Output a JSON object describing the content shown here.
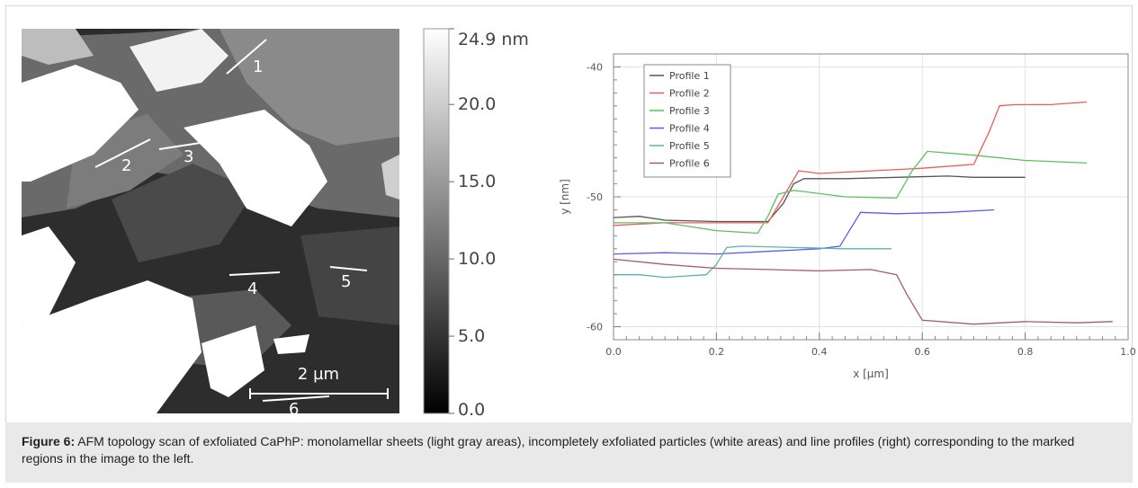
{
  "afm": {
    "colorbar_ticks": [
      "24.9 nm",
      "20.0",
      "15.0",
      "10.0",
      "5.0",
      "0.0"
    ],
    "colorbar_values": [
      24.9,
      20.0,
      15.0,
      10.0,
      5.0,
      0.0
    ],
    "scale_bar": "2 µm",
    "profile_labels": [
      "1",
      "2",
      "3",
      "4",
      "5",
      "6"
    ]
  },
  "chart_data": {
    "type": "line",
    "xlabel": "x [µm]",
    "ylabel": "y [nm]",
    "xlim": [
      0.0,
      1.0
    ],
    "ylim": [
      -61,
      -39
    ],
    "xticks": [
      "0.0",
      "0.2",
      "0.4",
      "0.6",
      "0.8",
      "1.0"
    ],
    "yticks": [
      "-40",
      "-50",
      "-60"
    ],
    "grid": true,
    "legend_position": "top-left",
    "series": [
      {
        "name": "Profile 1",
        "color": "#555555",
        "x": [
          0.0,
          0.05,
          0.1,
          0.2,
          0.3,
          0.33,
          0.35,
          0.37,
          0.45,
          0.55,
          0.65,
          0.7,
          0.8
        ],
        "y": [
          -51.6,
          -51.5,
          -51.8,
          -51.9,
          -51.9,
          -50.5,
          -49.0,
          -48.6,
          -48.6,
          -48.5,
          -48.4,
          -48.5,
          -48.5
        ]
      },
      {
        "name": "Profile 2",
        "color": "#f05a5a",
        "x": [
          0.0,
          0.1,
          0.2,
          0.3,
          0.33,
          0.36,
          0.4,
          0.5,
          0.6,
          0.7,
          0.73,
          0.75,
          0.78,
          0.85,
          0.92
        ],
        "y": [
          -52.2,
          -52.0,
          -52.0,
          -52.0,
          -50.0,
          -48.0,
          -48.2,
          -48.0,
          -47.8,
          -47.5,
          -45.0,
          -43.0,
          -42.9,
          -42.9,
          -42.7
        ]
      },
      {
        "name": "Profile 3",
        "color": "#5cc05c",
        "x": [
          0.0,
          0.1,
          0.2,
          0.28,
          0.3,
          0.32,
          0.35,
          0.45,
          0.55,
          0.58,
          0.61,
          0.7,
          0.8,
          0.92
        ],
        "y": [
          -52.0,
          -52.0,
          -52.6,
          -52.8,
          -51.5,
          -49.8,
          -49.5,
          -50.0,
          -50.1,
          -48.0,
          -46.5,
          -46.8,
          -47.2,
          -47.4
        ]
      },
      {
        "name": "Profile 4",
        "color": "#5c5cf0",
        "x": [
          0.0,
          0.1,
          0.2,
          0.3,
          0.4,
          0.44,
          0.46,
          0.48,
          0.55,
          0.65,
          0.74
        ],
        "y": [
          -54.4,
          -54.3,
          -54.4,
          -54.2,
          -54.0,
          -53.8,
          -52.5,
          -51.2,
          -51.3,
          -51.2,
          -51.0
        ]
      },
      {
        "name": "Profile 5",
        "color": "#5fb0b0",
        "x": [
          0.0,
          0.05,
          0.1,
          0.18,
          0.2,
          0.22,
          0.25,
          0.35,
          0.45,
          0.54
        ],
        "y": [
          -56.0,
          -56.0,
          -56.2,
          -56.0,
          -55.2,
          -53.9,
          -53.8,
          -53.9,
          -54.0,
          -54.0
        ]
      },
      {
        "name": "Profile 6",
        "color": "#a06060",
        "x": [
          0.0,
          0.1,
          0.2,
          0.3,
          0.4,
          0.5,
          0.55,
          0.57,
          0.6,
          0.7,
          0.8,
          0.9,
          0.97
        ],
        "y": [
          -54.8,
          -55.2,
          -55.5,
          -55.6,
          -55.7,
          -55.6,
          -56.0,
          -57.5,
          -59.5,
          -59.8,
          -59.6,
          -59.7,
          -59.6
        ]
      }
    ]
  },
  "caption": {
    "label": "Figure 6:",
    "text": " AFM topology scan of exfoliated CaPhP: monolamellar sheets (light gray areas), incompletely exfoliated particles (white areas) and line profiles (right) corresponding to the marked regions in the image to the left."
  }
}
